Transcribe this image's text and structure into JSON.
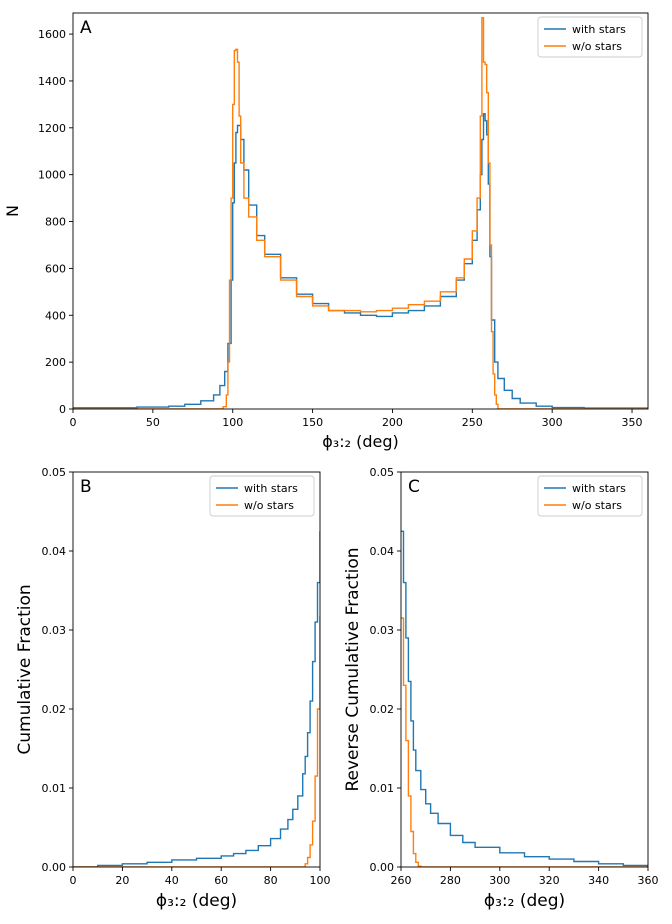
{
  "colors": {
    "with_stars": "#1f77b4",
    "without_stars": "#ff7f0e",
    "axis": "#000000"
  },
  "chart_data": [
    {
      "type": "histogram-step",
      "panel_label": "A",
      "xlabel": "ϕ₃:₂ (deg)",
      "ylabel": "N",
      "xlim": [
        0,
        360
      ],
      "ylim": [
        0,
        1690
      ],
      "xticks": [
        0,
        50,
        100,
        150,
        200,
        250,
        300,
        350
      ],
      "yticks": [
        0,
        200,
        400,
        600,
        800,
        1000,
        1200,
        1400,
        1600
      ],
      "legend": [
        "with stars",
        "w/o stars"
      ],
      "legend_position": "top-right",
      "series": [
        {
          "name": "with stars",
          "color_key": "with_stars",
          "points": [
            [
              0,
              5
            ],
            [
              40,
              8
            ],
            [
              60,
              12
            ],
            [
              70,
              20
            ],
            [
              80,
              35
            ],
            [
              88,
              60
            ],
            [
              92,
              100
            ],
            [
              95,
              160
            ],
            [
              97,
              280
            ],
            [
              99,
              550
            ],
            [
              100,
              880
            ],
            [
              101,
              1050
            ],
            [
              102,
              1180
            ],
            [
              103,
              1210
            ],
            [
              105,
              1150
            ],
            [
              107,
              1020
            ],
            [
              110,
              870
            ],
            [
              115,
              740
            ],
            [
              120,
              660
            ],
            [
              130,
              560
            ],
            [
              140,
              490
            ],
            [
              150,
              450
            ],
            [
              160,
              420
            ],
            [
              170,
              410
            ],
            [
              180,
              400
            ],
            [
              190,
              395
            ],
            [
              200,
              410
            ],
            [
              210,
              420
            ],
            [
              220,
              440
            ],
            [
              230,
              480
            ],
            [
              240,
              550
            ],
            [
              245,
              620
            ],
            [
              250,
              720
            ],
            [
              253,
              850
            ],
            [
              255,
              1000
            ],
            [
              256,
              1150
            ],
            [
              257,
              1260
            ],
            [
              258,
              1230
            ],
            [
              259,
              1170
            ],
            [
              260,
              960
            ],
            [
              261,
              650
            ],
            [
              262,
              380
            ],
            [
              264,
              200
            ],
            [
              266,
              130
            ],
            [
              270,
              80
            ],
            [
              275,
              45
            ],
            [
              280,
              25
            ],
            [
              290,
              12
            ],
            [
              300,
              6
            ],
            [
              320,
              4
            ],
            [
              360,
              2
            ]
          ]
        },
        {
          "name": "w/o stars",
          "color_key": "without_stars",
          "points": [
            [
              0,
              0
            ],
            [
              91,
              0
            ],
            [
              94,
              10
            ],
            [
              96,
              60
            ],
            [
              97,
              200
            ],
            [
              98,
              550
            ],
            [
              99,
              900
            ],
            [
              100,
              1300
            ],
            [
              101,
              1530
            ],
            [
              102,
              1535
            ],
            [
              103,
              1480
            ],
            [
              104,
              1250
            ],
            [
              105,
              1050
            ],
            [
              107,
              900
            ],
            [
              110,
              820
            ],
            [
              115,
              720
            ],
            [
              120,
              650
            ],
            [
              130,
              550
            ],
            [
              140,
              480
            ],
            [
              150,
              440
            ],
            [
              160,
              420
            ],
            [
              170,
              420
            ],
            [
              180,
              415
            ],
            [
              190,
              420
            ],
            [
              200,
              430
            ],
            [
              210,
              445
            ],
            [
              220,
              460
            ],
            [
              230,
              500
            ],
            [
              240,
              560
            ],
            [
              245,
              640
            ],
            [
              250,
              760
            ],
            [
              253,
              900
            ],
            [
              255,
              1250
            ],
            [
              256,
              1670
            ],
            [
              257,
              1480
            ],
            [
              258,
              1470
            ],
            [
              259,
              1350
            ],
            [
              260,
              1050
            ],
            [
              261,
              700
            ],
            [
              262,
              330
            ],
            [
              263,
              150
            ],
            [
              264,
              60
            ],
            [
              265,
              20
            ],
            [
              266,
              0
            ],
            [
              360,
              0
            ]
          ]
        }
      ]
    },
    {
      "type": "cumulative-step",
      "panel_label": "B",
      "xlabel": "ϕ₃:₂ (deg)",
      "ylabel": "Cumulative Fraction",
      "xlim": [
        0,
        100
      ],
      "ylim": [
        0,
        0.05
      ],
      "xticks": [
        0,
        20,
        40,
        60,
        80,
        100
      ],
      "yticks": [
        0.0,
        0.01,
        0.02,
        0.03,
        0.04,
        0.05
      ],
      "ytick_labels": [
        "0.00",
        "0.01",
        "0.02",
        "0.03",
        "0.04",
        "0.05"
      ],
      "legend": [
        "with stars",
        "w/o stars"
      ],
      "legend_position": "top-right",
      "series": [
        {
          "name": "with stars",
          "color_key": "with_stars",
          "points": [
            [
              0,
              0
            ],
            [
              10,
              0.0002
            ],
            [
              20,
              0.0004
            ],
            [
              30,
              0.0006
            ],
            [
              40,
              0.0009
            ],
            [
              50,
              0.0011
            ],
            [
              60,
              0.0014
            ],
            [
              65,
              0.0017
            ],
            [
              70,
              0.0021
            ],
            [
              75,
              0.0027
            ],
            [
              80,
              0.0036
            ],
            [
              84,
              0.0048
            ],
            [
              87,
              0.006
            ],
            [
              89,
              0.0073
            ],
            [
              91,
              0.009
            ],
            [
              93,
              0.0118
            ],
            [
              94,
              0.014
            ],
            [
              95,
              0.017
            ],
            [
              96,
              0.021
            ],
            [
              97,
              0.026
            ],
            [
              98,
              0.031
            ],
            [
              99,
              0.036
            ],
            [
              100,
              0.0425
            ]
          ]
        },
        {
          "name": "w/o stars",
          "color_key": "without_stars",
          "points": [
            [
              0,
              0
            ],
            [
              93,
              0
            ],
            [
              94,
              0.0004
            ],
            [
              95,
              0.0012
            ],
            [
              96,
              0.0028
            ],
            [
              97,
              0.0058
            ],
            [
              98,
              0.0115
            ],
            [
              99,
              0.02
            ],
            [
              100,
              0.0318
            ]
          ]
        }
      ]
    },
    {
      "type": "cumulative-step",
      "panel_label": "C",
      "xlabel": "ϕ₃:₂ (deg)",
      "ylabel": "Reverse Cumulative Fraction",
      "xlim": [
        260,
        360
      ],
      "ylim": [
        0,
        0.05
      ],
      "xticks": [
        260,
        280,
        300,
        320,
        340,
        360
      ],
      "yticks": [
        0.0,
        0.01,
        0.02,
        0.03,
        0.04,
        0.05
      ],
      "ytick_labels": [
        "0.00",
        "0.01",
        "0.02",
        "0.03",
        "0.04",
        "0.05"
      ],
      "legend": [
        "with stars",
        "w/o stars"
      ],
      "legend_position": "top-right",
      "series": [
        {
          "name": "with stars",
          "color_key": "with_stars",
          "points": [
            [
              260,
              0.0425
            ],
            [
              261,
              0.036
            ],
            [
              262,
              0.029
            ],
            [
              263,
              0.0235
            ],
            [
              264,
              0.0185
            ],
            [
              265,
              0.0148
            ],
            [
              266,
              0.0122
            ],
            [
              268,
              0.0098
            ],
            [
              270,
              0.008
            ],
            [
              272,
              0.0068
            ],
            [
              275,
              0.0055
            ],
            [
              280,
              0.004
            ],
            [
              285,
              0.0031
            ],
            [
              290,
              0.0025
            ],
            [
              300,
              0.0018
            ],
            [
              310,
              0.0013
            ],
            [
              320,
              0.001
            ],
            [
              330,
              0.0007
            ],
            [
              340,
              0.0004
            ],
            [
              350,
              0.0002
            ],
            [
              360,
              0
            ]
          ]
        },
        {
          "name": "w/o stars",
          "color_key": "without_stars",
          "points": [
            [
              260,
              0.0315
            ],
            [
              261,
              0.023
            ],
            [
              262,
              0.016
            ],
            [
              263,
              0.009
            ],
            [
              264,
              0.0045
            ],
            [
              265,
              0.0017
            ],
            [
              266,
              0.0006
            ],
            [
              267,
              0.0001
            ],
            [
              268,
              0
            ],
            [
              360,
              0
            ]
          ]
        }
      ]
    }
  ]
}
